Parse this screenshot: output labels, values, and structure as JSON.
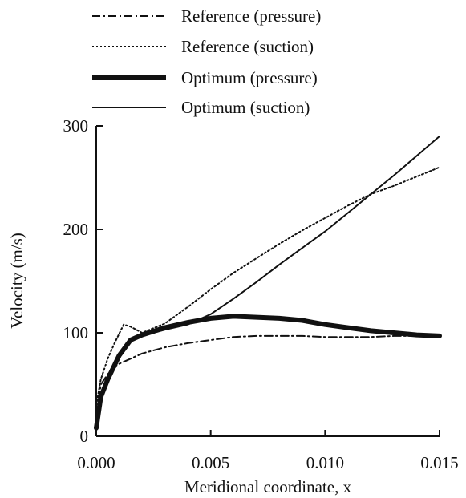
{
  "chart_data": {
    "type": "line",
    "title": "",
    "xlabel": "Meridional coordinate, x",
    "ylabel": "Velocity (m/s)",
    "xlim": [
      0,
      0.015
    ],
    "ylim": [
      0,
      300
    ],
    "x_ticks": [
      "0.000",
      "0.005",
      "0.010",
      "0.015"
    ],
    "y_ticks": [
      "0",
      "100",
      "200",
      "300"
    ],
    "grid": false,
    "legend_position": "top",
    "series": [
      {
        "name": "Reference (pressure)",
        "style": "dash-dot",
        "color": "#111111",
        "x": [
          0,
          0.0002,
          0.0005,
          0.001,
          0.002,
          0.003,
          0.004,
          0.005,
          0.006,
          0.007,
          0.008,
          0.009,
          0.01,
          0.011,
          0.012,
          0.013,
          0.014,
          0.015
        ],
        "y": [
          20,
          50,
          60,
          70,
          80,
          86,
          90,
          93,
          96,
          97,
          97,
          97,
          96,
          96,
          96,
          97,
          97,
          97
        ]
      },
      {
        "name": "Reference (suction)",
        "style": "dotted",
        "color": "#111111",
        "x": [
          0,
          0.0002,
          0.0005,
          0.0008,
          0.0012,
          0.0015,
          0.002,
          0.003,
          0.004,
          0.005,
          0.006,
          0.007,
          0.008,
          0.009,
          0.01,
          0.011,
          0.012,
          0.013,
          0.014,
          0.015
        ],
        "y": [
          30,
          55,
          75,
          90,
          108,
          106,
          100,
          109,
          125,
          142,
          158,
          172,
          186,
          199,
          211,
          223,
          234,
          242,
          251,
          260
        ]
      },
      {
        "name": "Optimum (pressure)",
        "style": "thick",
        "color": "#111111",
        "x": [
          0,
          0.0002,
          0.0005,
          0.001,
          0.0015,
          0.002,
          0.003,
          0.004,
          0.005,
          0.006,
          0.007,
          0.008,
          0.009,
          0.01,
          0.011,
          0.012,
          0.013,
          0.014,
          0.015
        ],
        "y": [
          8,
          38,
          55,
          78,
          93,
          98,
          105,
          110,
          114,
          116,
          115,
          114,
          112,
          108,
          105,
          102,
          100,
          98,
          97
        ]
      },
      {
        "name": "Optimum (suction)",
        "style": "solid",
        "color": "#111111",
        "x": [
          0,
          0.0002,
          0.0005,
          0.001,
          0.0015,
          0.002,
          0.003,
          0.004,
          0.005,
          0.006,
          0.007,
          0.008,
          0.009,
          0.01,
          0.011,
          0.012,
          0.013,
          0.014,
          0.015
        ],
        "y": [
          6,
          36,
          54,
          77,
          92,
          97,
          103,
          108,
          118,
          133,
          149,
          166,
          182,
          198,
          216,
          234,
          252,
          271,
          290
        ]
      }
    ]
  }
}
